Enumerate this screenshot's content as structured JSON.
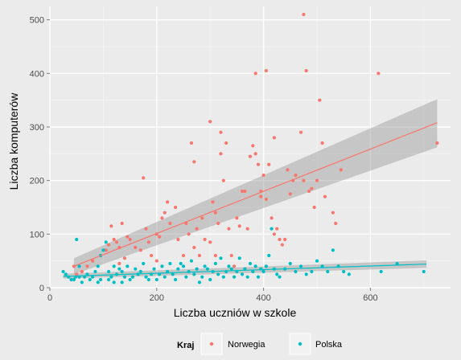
{
  "chart_data": {
    "type": "scatter",
    "xlabel": "Liczba uczniów w szkole",
    "ylabel": "Liczba komputerów",
    "xlim": [
      0,
      750
    ],
    "ylim": [
      0,
      525
    ],
    "x_ticks": [
      0,
      200,
      400,
      600
    ],
    "y_ticks": [
      0,
      100,
      200,
      300,
      400,
      500
    ],
    "grid": true,
    "legend": {
      "title": "Kraj",
      "placement": "bottom"
    },
    "series": [
      {
        "name": "Norwegia",
        "color": "#f8766d",
        "points": [
          [
            45,
            40
          ],
          [
            50,
            25
          ],
          [
            60,
            30
          ],
          [
            70,
            40
          ],
          [
            80,
            50
          ],
          [
            95,
            60
          ],
          [
            105,
            70
          ],
          [
            110,
            80
          ],
          [
            115,
            115
          ],
          [
            120,
            90
          ],
          [
            125,
            85
          ],
          [
            130,
            45
          ],
          [
            130,
            75
          ],
          [
            135,
            120
          ],
          [
            140,
            55
          ],
          [
            145,
            95
          ],
          [
            150,
            90
          ],
          [
            160,
            75
          ],
          [
            170,
            70
          ],
          [
            175,
            205
          ],
          [
            180,
            110
          ],
          [
            185,
            85
          ],
          [
            190,
            60
          ],
          [
            200,
            50
          ],
          [
            200,
            100
          ],
          [
            205,
            95
          ],
          [
            210,
            130
          ],
          [
            215,
            140
          ],
          [
            220,
            160
          ],
          [
            225,
            120
          ],
          [
            235,
            150
          ],
          [
            240,
            90
          ],
          [
            250,
            60
          ],
          [
            255,
            120
          ],
          [
            260,
            100
          ],
          [
            265,
            270
          ],
          [
            270,
            235
          ],
          [
            270,
            75
          ],
          [
            275,
            110
          ],
          [
            280,
            60
          ],
          [
            285,
            130
          ],
          [
            290,
            90
          ],
          [
            300,
            85
          ],
          [
            300,
            310
          ],
          [
            305,
            160
          ],
          [
            310,
            140
          ],
          [
            310,
            60
          ],
          [
            315,
            120
          ],
          [
            320,
            250
          ],
          [
            320,
            290
          ],
          [
            325,
            200
          ],
          [
            330,
            270
          ],
          [
            335,
            110
          ],
          [
            340,
            60
          ],
          [
            345,
            40
          ],
          [
            350,
            130
          ],
          [
            355,
            115
          ],
          [
            360,
            180
          ],
          [
            365,
            180
          ],
          [
            370,
            110
          ],
          [
            375,
            245
          ],
          [
            380,
            265
          ],
          [
            385,
            250
          ],
          [
            385,
            400
          ],
          [
            390,
            230
          ],
          [
            395,
            180
          ],
          [
            395,
            170
          ],
          [
            400,
            210
          ],
          [
            405,
            405
          ],
          [
            405,
            165
          ],
          [
            410,
            230
          ],
          [
            415,
            130
          ],
          [
            420,
            280
          ],
          [
            420,
            100
          ],
          [
            425,
            110
          ],
          [
            430,
            90
          ],
          [
            435,
            80
          ],
          [
            440,
            90
          ],
          [
            445,
            220
          ],
          [
            450,
            175
          ],
          [
            455,
            200
          ],
          [
            460,
            210
          ],
          [
            470,
            290
          ],
          [
            475,
            510
          ],
          [
            475,
            200
          ],
          [
            480,
            405
          ],
          [
            485,
            180
          ],
          [
            490,
            185
          ],
          [
            495,
            150
          ],
          [
            500,
            200
          ],
          [
            505,
            350
          ],
          [
            510,
            270
          ],
          [
            515,
            170
          ],
          [
            530,
            140
          ],
          [
            535,
            120
          ],
          [
            545,
            220
          ],
          [
            615,
            400
          ],
          [
            725,
            270
          ]
        ],
        "trend": {
          "x": [
            45,
            725
          ],
          "y": [
            40,
            308
          ],
          "ci_low": [
            25,
            262
          ],
          "ci_high": [
            55,
            352
          ]
        }
      },
      {
        "name": "Polska",
        "color": "#00bfc4",
        "points": [
          [
            25,
            30
          ],
          [
            30,
            25
          ],
          [
            35,
            20
          ],
          [
            40,
            15
          ],
          [
            45,
            15
          ],
          [
            48,
            20
          ],
          [
            50,
            90
          ],
          [
            55,
            20
          ],
          [
            55,
            40
          ],
          [
            60,
            10
          ],
          [
            65,
            20
          ],
          [
            70,
            25
          ],
          [
            75,
            15
          ],
          [
            80,
            20
          ],
          [
            85,
            30
          ],
          [
            90,
            40
          ],
          [
            90,
            10
          ],
          [
            95,
            15
          ],
          [
            95,
            60
          ],
          [
            100,
            70
          ],
          [
            105,
            85
          ],
          [
            110,
            15
          ],
          [
            110,
            30
          ],
          [
            115,
            20
          ],
          [
            120,
            10
          ],
          [
            120,
            40
          ],
          [
            125,
            25
          ],
          [
            130,
            35
          ],
          [
            135,
            10
          ],
          [
            135,
            30
          ],
          [
            140,
            20
          ],
          [
            145,
            40
          ],
          [
            150,
            15
          ],
          [
            155,
            20
          ],
          [
            160,
            35
          ],
          [
            165,
            25
          ],
          [
            170,
            30
          ],
          [
            175,
            45
          ],
          [
            180,
            20
          ],
          [
            185,
            15
          ],
          [
            190,
            25
          ],
          [
            195,
            35
          ],
          [
            200,
            15
          ],
          [
            205,
            25
          ],
          [
            210,
            40
          ],
          [
            215,
            20
          ],
          [
            220,
            30
          ],
          [
            225,
            45
          ],
          [
            230,
            25
          ],
          [
            235,
            15
          ],
          [
            240,
            35
          ],
          [
            245,
            45
          ],
          [
            250,
            40
          ],
          [
            255,
            20
          ],
          [
            260,
            30
          ],
          [
            265,
            50
          ],
          [
            270,
            25
          ],
          [
            275,
            35
          ],
          [
            280,
            10
          ],
          [
            285,
            20
          ],
          [
            290,
            40
          ],
          [
            295,
            35
          ],
          [
            300,
            15
          ],
          [
            305,
            30
          ],
          [
            310,
            45
          ],
          [
            315,
            25
          ],
          [
            320,
            55
          ],
          [
            325,
            20
          ],
          [
            330,
            30
          ],
          [
            335,
            40
          ],
          [
            340,
            35
          ],
          [
            345,
            20
          ],
          [
            350,
            30
          ],
          [
            355,
            55
          ],
          [
            360,
            25
          ],
          [
            365,
            35
          ],
          [
            370,
            20
          ],
          [
            375,
            45
          ],
          [
            380,
            30
          ],
          [
            385,
            40
          ],
          [
            390,
            20
          ],
          [
            395,
            35
          ],
          [
            400,
            30
          ],
          [
            405,
            40
          ],
          [
            410,
            60
          ],
          [
            415,
            110
          ],
          [
            420,
            35
          ],
          [
            425,
            25
          ],
          [
            430,
            20
          ],
          [
            440,
            35
          ],
          [
            450,
            45
          ],
          [
            460,
            30
          ],
          [
            470,
            40
          ],
          [
            480,
            25
          ],
          [
            490,
            30
          ],
          [
            500,
            50
          ],
          [
            510,
            40
          ],
          [
            520,
            30
          ],
          [
            530,
            70
          ],
          [
            540,
            40
          ],
          [
            550,
            30
          ],
          [
            560,
            25
          ],
          [
            620,
            30
          ],
          [
            650,
            45
          ],
          [
            700,
            30
          ]
        ],
        "trend": {
          "x": [
            25,
            705
          ],
          "y": [
            21,
            44
          ],
          "ci_low": [
            17,
            37
          ],
          "ci_high": [
            26,
            51
          ]
        }
      }
    ]
  }
}
